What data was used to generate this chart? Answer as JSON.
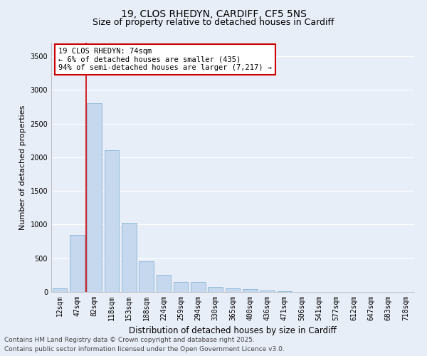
{
  "title_line1": "19, CLOS RHEDYN, CARDIFF, CF5 5NS",
  "title_line2": "Size of property relative to detached houses in Cardiff",
  "xlabel": "Distribution of detached houses by size in Cardiff",
  "ylabel": "Number of detached properties",
  "bar_color": "#c5d8ed",
  "bar_edge_color": "#7aaacf",
  "background_color": "#e8eef8",
  "grid_color": "#ffffff",
  "vline_color": "#cc0000",
  "annotation_text": "19 CLOS RHEDYN: 74sqm\n← 6% of detached houses are smaller (435)\n94% of semi-detached houses are larger (7,217) →",
  "annotation_box_color": "#ffffff",
  "annotation_box_edge": "#cc0000",
  "bins": [
    "12sqm",
    "47sqm",
    "82sqm",
    "118sqm",
    "153sqm",
    "188sqm",
    "224sqm",
    "259sqm",
    "294sqm",
    "330sqm",
    "365sqm",
    "400sqm",
    "436sqm",
    "471sqm",
    "506sqm",
    "541sqm",
    "577sqm",
    "612sqm",
    "647sqm",
    "683sqm",
    "718sqm"
  ],
  "values": [
    50,
    850,
    2800,
    2100,
    1030,
    450,
    250,
    150,
    150,
    70,
    55,
    40,
    20,
    10,
    5,
    3,
    2,
    1,
    0,
    0,
    0
  ],
  "ylim": [
    0,
    3700
  ],
  "yticks": [
    0,
    500,
    1000,
    1500,
    2000,
    2500,
    3000,
    3500
  ],
  "footer_line1": "Contains HM Land Registry data © Crown copyright and database right 2025.",
  "footer_line2": "Contains public sector information licensed under the Open Government Licence v3.0.",
  "footer_fontsize": 6.5,
  "title_fontsize1": 10,
  "title_fontsize2": 9,
  "xlabel_fontsize": 8.5,
  "ylabel_fontsize": 8,
  "tick_fontsize": 7,
  "annotation_fontsize": 7.5
}
